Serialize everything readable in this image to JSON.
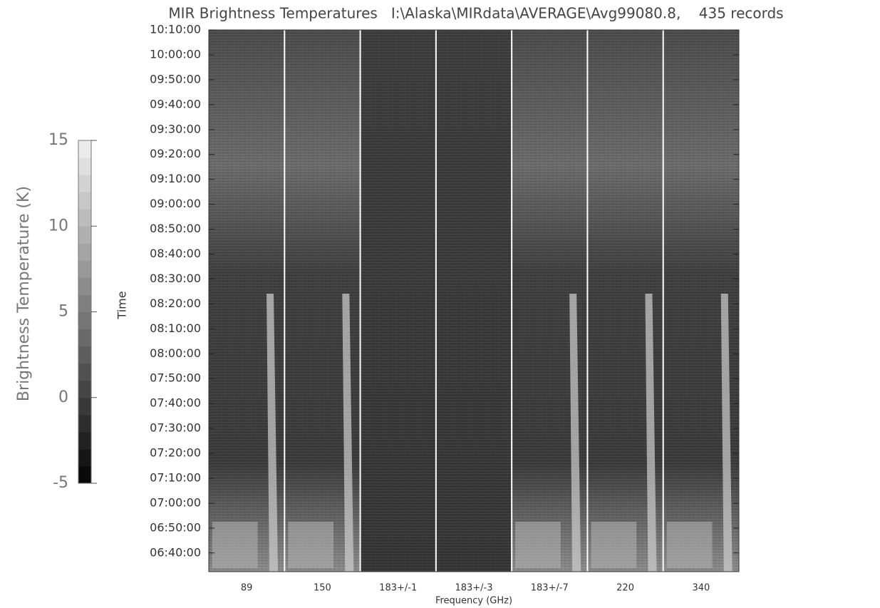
{
  "chart_data": {
    "type": "heatmap",
    "title": "MIR Brightness Temperatures   I:\\Alaska\\MIRdata\\AVERAGE\\Avg99080.8,    435 records",
    "x_label": "Frequency (GHz)",
    "y_label": "Time",
    "categories": [
      "89",
      "150",
      "183+/-1",
      "183+/-3",
      "183+/-7",
      "220",
      "340"
    ],
    "ylim": [
      "06:32:30",
      "10:10:00"
    ],
    "yticks": [
      "10:10:00",
      "10:00:00",
      "09:50:00",
      "09:40:00",
      "09:30:00",
      "09:20:00",
      "09:10:00",
      "09:00:00",
      "08:50:00",
      "08:40:00",
      "08:30:00",
      "08:20:00",
      "08:10:00",
      "08:00:00",
      "07:50:00",
      "07:40:00",
      "07:30:00",
      "07:20:00",
      "07:10:00",
      "07:00:00",
      "06:50:00",
      "06:40:00"
    ],
    "colorbar": {
      "label": "Brightness Temperature (K)",
      "lim": [
        -5,
        15
      ],
      "ticks": [
        -5,
        0,
        5,
        10,
        15
      ]
    }
  }
}
